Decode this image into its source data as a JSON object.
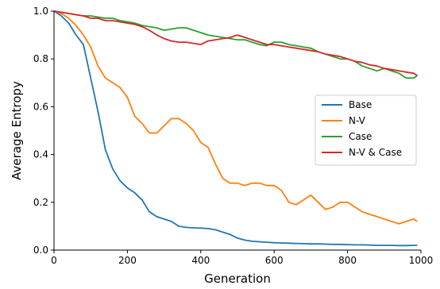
{
  "chart_data": {
    "type": "line",
    "title": "",
    "xlabel": "Generation",
    "ylabel": "Average Entropy",
    "xlim": [
      0,
      1000
    ],
    "ylim": [
      0,
      1.0
    ],
    "xticks": [
      0,
      200,
      400,
      600,
      800,
      1000
    ],
    "xtick_labels": [
      "0",
      "200",
      "400",
      "600",
      "800",
      "1000"
    ],
    "yticks": [
      0.0,
      0.2,
      0.4,
      0.6,
      0.8,
      1.0
    ],
    "ytick_labels": [
      "0.0",
      "0.2",
      "0.4",
      "0.6",
      "0.8",
      "1.0"
    ],
    "grid": false,
    "legend_position": "center-right",
    "x": [
      0,
      20,
      40,
      60,
      80,
      100,
      120,
      140,
      160,
      180,
      200,
      220,
      240,
      260,
      280,
      300,
      320,
      340,
      360,
      380,
      400,
      420,
      440,
      460,
      480,
      500,
      520,
      540,
      560,
      580,
      600,
      620,
      640,
      660,
      680,
      700,
      720,
      740,
      760,
      780,
      800,
      820,
      840,
      860,
      880,
      900,
      920,
      940,
      960,
      980,
      990
    ],
    "series": [
      {
        "name": "Base",
        "color": "#1f77b4",
        "values": [
          1.0,
          0.98,
          0.95,
          0.9,
          0.86,
          0.72,
          0.58,
          0.42,
          0.34,
          0.29,
          0.26,
          0.24,
          0.21,
          0.16,
          0.14,
          0.13,
          0.12,
          0.1,
          0.095,
          0.093,
          0.092,
          0.09,
          0.085,
          0.075,
          0.065,
          0.05,
          0.042,
          0.037,
          0.035,
          0.033,
          0.031,
          0.03,
          0.029,
          0.028,
          0.027,
          0.026,
          0.026,
          0.025,
          0.024,
          0.024,
          0.023,
          0.022,
          0.022,
          0.021,
          0.02,
          0.02,
          0.02,
          0.019,
          0.019,
          0.02,
          0.02
        ]
      },
      {
        "name": "N-V",
        "color": "#ff7f0e",
        "values": [
          1.0,
          0.99,
          0.97,
          0.94,
          0.9,
          0.85,
          0.77,
          0.72,
          0.7,
          0.68,
          0.64,
          0.56,
          0.53,
          0.49,
          0.49,
          0.52,
          0.55,
          0.55,
          0.53,
          0.5,
          0.45,
          0.43,
          0.36,
          0.3,
          0.28,
          0.28,
          0.27,
          0.28,
          0.28,
          0.27,
          0.27,
          0.25,
          0.2,
          0.19,
          0.21,
          0.23,
          0.2,
          0.17,
          0.18,
          0.2,
          0.2,
          0.18,
          0.16,
          0.15,
          0.14,
          0.13,
          0.12,
          0.11,
          0.12,
          0.13,
          0.12
        ]
      },
      {
        "name": "Case",
        "color": "#2ca02c",
        "values": [
          1.0,
          0.995,
          0.99,
          0.985,
          0.98,
          0.98,
          0.975,
          0.97,
          0.97,
          0.96,
          0.955,
          0.95,
          0.94,
          0.935,
          0.93,
          0.92,
          0.925,
          0.93,
          0.93,
          0.92,
          0.91,
          0.9,
          0.895,
          0.89,
          0.885,
          0.88,
          0.88,
          0.87,
          0.86,
          0.855,
          0.87,
          0.87,
          0.86,
          0.855,
          0.85,
          0.845,
          0.83,
          0.82,
          0.81,
          0.8,
          0.8,
          0.79,
          0.77,
          0.76,
          0.75,
          0.76,
          0.75,
          0.74,
          0.72,
          0.72,
          0.73
        ]
      },
      {
        "name": "N-V & Case",
        "color": "#d62728",
        "values": [
          1.0,
          0.995,
          0.99,
          0.985,
          0.98,
          0.97,
          0.97,
          0.96,
          0.96,
          0.955,
          0.95,
          0.945,
          0.935,
          0.92,
          0.9,
          0.885,
          0.875,
          0.87,
          0.87,
          0.865,
          0.86,
          0.875,
          0.88,
          0.885,
          0.89,
          0.9,
          0.89,
          0.88,
          0.87,
          0.86,
          0.86,
          0.855,
          0.85,
          0.845,
          0.84,
          0.835,
          0.83,
          0.82,
          0.815,
          0.81,
          0.8,
          0.79,
          0.785,
          0.775,
          0.77,
          0.76,
          0.755,
          0.75,
          0.745,
          0.74,
          0.73
        ]
      }
    ]
  }
}
